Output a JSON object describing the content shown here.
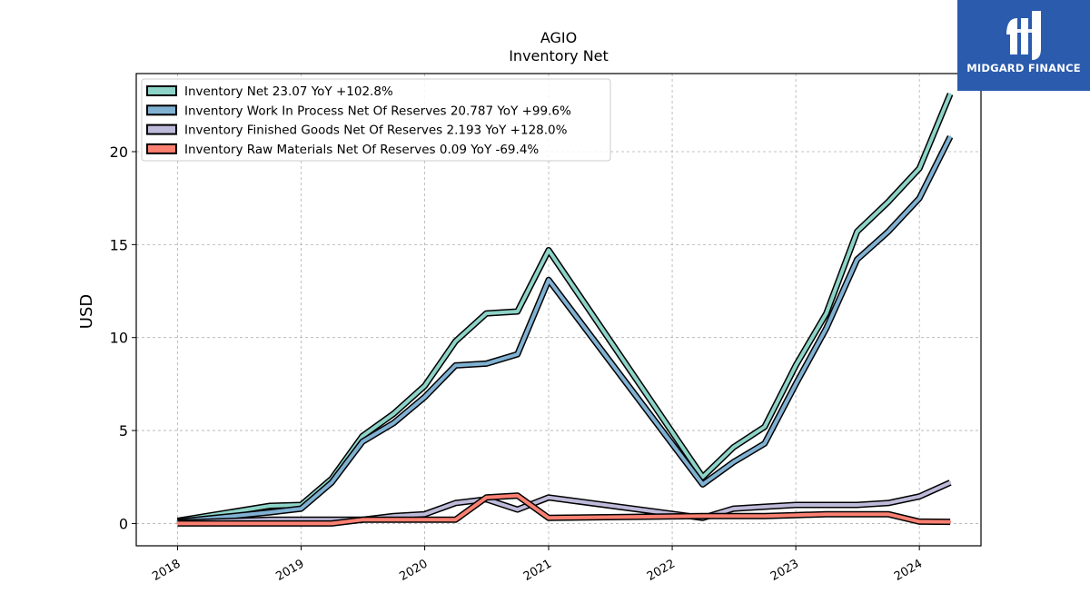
{
  "chart_data": {
    "type": "line",
    "title": "AGIO",
    "subtitle": "Inventory Net",
    "ylabel": "USD",
    "xlabel": "",
    "ylim": [
      -1.2,
      24.2
    ],
    "xlim": [
      "2017-09-01",
      "2024-07-01"
    ],
    "yticks": [
      0,
      5,
      10,
      15,
      20
    ],
    "xticks": [
      "2018",
      "2019",
      "2020",
      "2021",
      "2022",
      "2023",
      "2024"
    ],
    "grid": true,
    "legend_position": "top-left",
    "x": [
      "2018-01-01",
      "2018-10-01",
      "2019-01-01",
      "2019-04-01",
      "2019-07-01",
      "2019-10-01",
      "2020-01-01",
      "2020-04-01",
      "2020-07-01",
      "2020-10-01",
      "2021-01-01",
      "2022-04-01",
      "2022-07-01",
      "2022-10-01",
      "2023-01-01",
      "2023-04-01",
      "2023-07-01",
      "2023-10-01",
      "2024-01-01",
      "2024-04-01"
    ],
    "series": [
      {
        "name": "Inventory Net",
        "legend_label": "Inventory Net  23.07 YoY +102.8%",
        "color": "#8dd3c7",
        "values": [
          0.15,
          0.95,
          1.0,
          2.4,
          4.7,
          5.9,
          7.4,
          9.8,
          11.3,
          11.4,
          14.7,
          2.5,
          4.1,
          5.2,
          8.5,
          11.3,
          15.7,
          17.3,
          19.1,
          23.1
        ]
      },
      {
        "name": "Inventory Work In Process Net Of Reserves",
        "legend_label": "Inventory Work In Process Net Of Reserves  20.787 YoY +99.6%",
        "color": "#80b1d3",
        "values": [
          0.1,
          0.6,
          0.8,
          2.2,
          4.4,
          5.4,
          6.8,
          8.5,
          8.6,
          9.1,
          13.1,
          2.1,
          3.3,
          4.3,
          7.5,
          10.5,
          14.2,
          15.7,
          17.5,
          20.8
        ]
      },
      {
        "name": "Inventory Finished Goods Net Of Reserves",
        "legend_label": "Inventory Finished Goods Net Of Reserves  2.193 YoY +128.0%",
        "color": "#bebada",
        "values": [
          0.05,
          0.2,
          0.2,
          0.2,
          0.2,
          0.4,
          0.5,
          1.1,
          1.3,
          0.75,
          1.4,
          0.3,
          0.8,
          0.9,
          1.0,
          1.0,
          1.0,
          1.1,
          1.45,
          2.2
        ]
      },
      {
        "name": "Inventory Raw Materials Net Of Reserves",
        "legend_label": "Inventory Raw Materials Net Of Reserves  0.09 YoY -69.4%",
        "color": "#fb8072",
        "values": [
          0.0,
          0.0,
          0.0,
          0.0,
          0.2,
          0.2,
          0.2,
          0.2,
          1.4,
          1.5,
          0.3,
          0.4,
          0.4,
          0.4,
          0.45,
          0.5,
          0.5,
          0.5,
          0.1,
          0.09
        ]
      }
    ]
  },
  "brand": {
    "name": "MIDGARD FINANCE",
    "background": "#2a5bad"
  }
}
